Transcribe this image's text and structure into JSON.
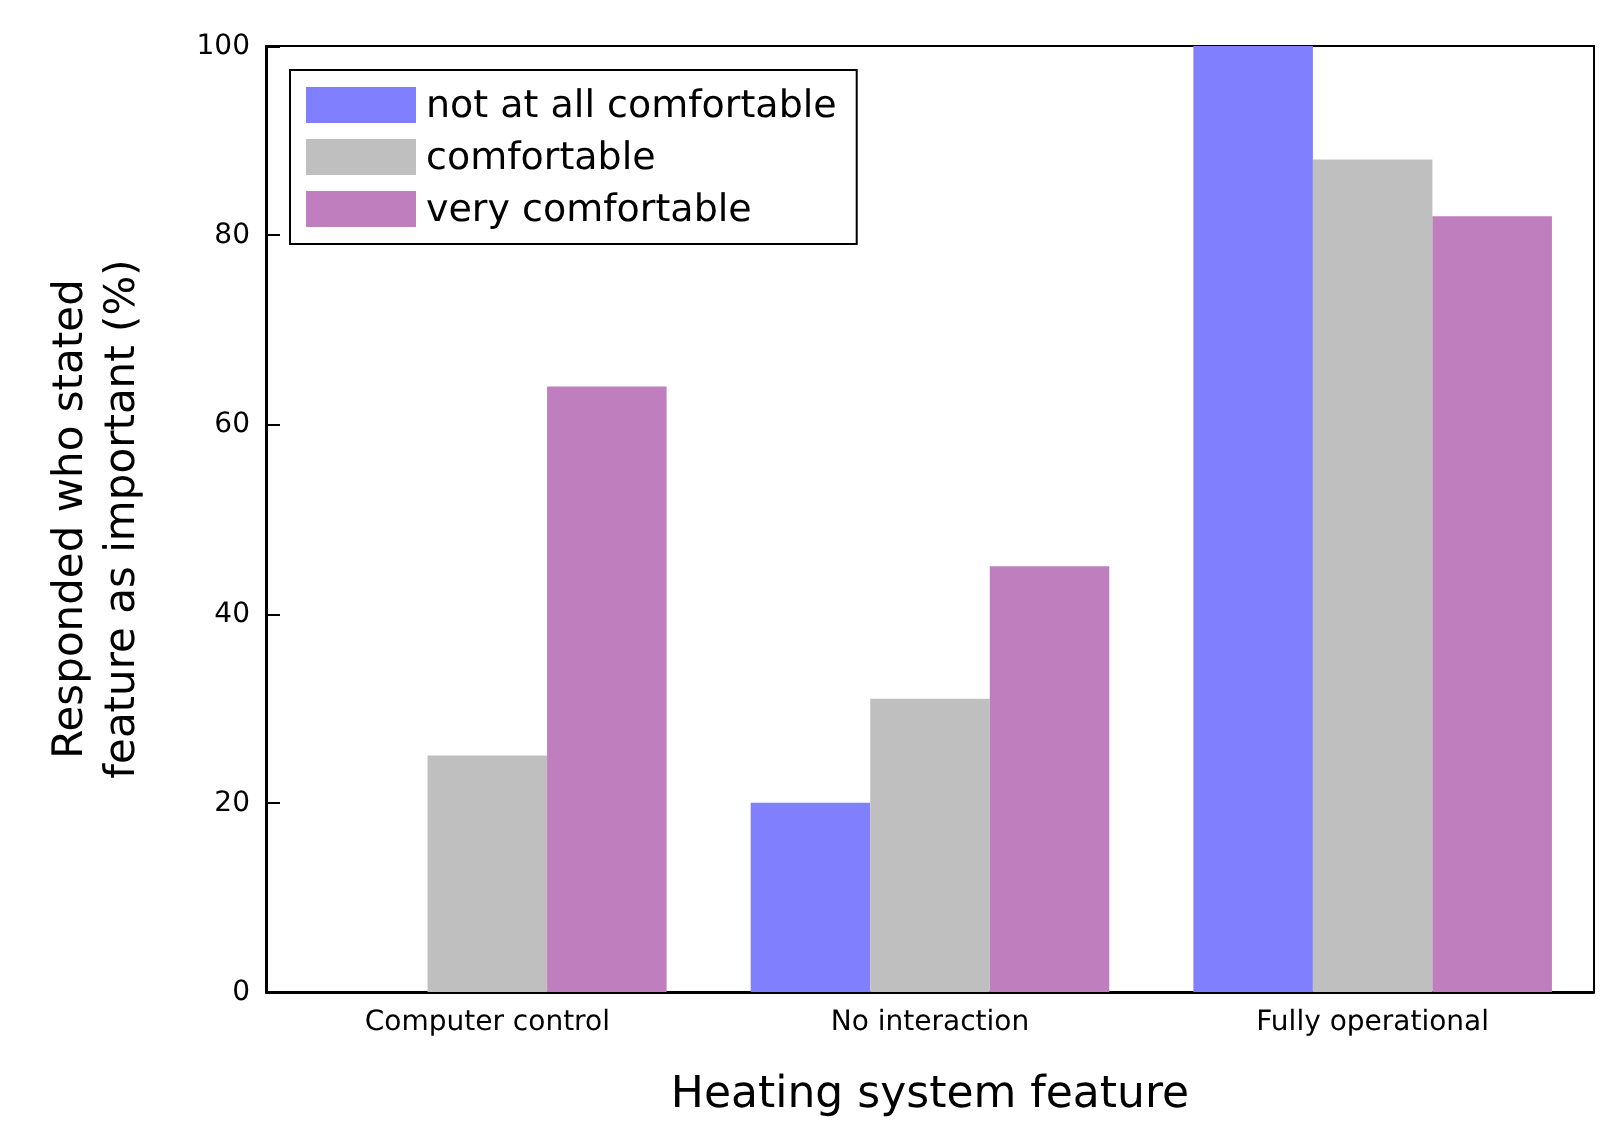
{
  "chart_data": {
    "type": "bar",
    "xlabel": "Heating system feature",
    "ylabel": "Responded who stated\nfeature as important (%)",
    "categories": [
      "Computer control",
      "No interaction",
      "Fully operational"
    ],
    "series": [
      {
        "name": "not at all comfortable",
        "color": "#8080ff",
        "values": [
          0,
          20,
          100
        ]
      },
      {
        "name": "comfortable",
        "color": "#bfbfbf",
        "values": [
          25,
          31,
          88
        ]
      },
      {
        "name": "very comfortable",
        "color": "#bf7fbf",
        "values": [
          64,
          45,
          82
        ]
      }
    ],
    "ylim": [
      0,
      100
    ],
    "yticks": [
      0,
      20,
      40,
      60,
      80,
      100
    ],
    "grid": false,
    "legend": "top left"
  }
}
